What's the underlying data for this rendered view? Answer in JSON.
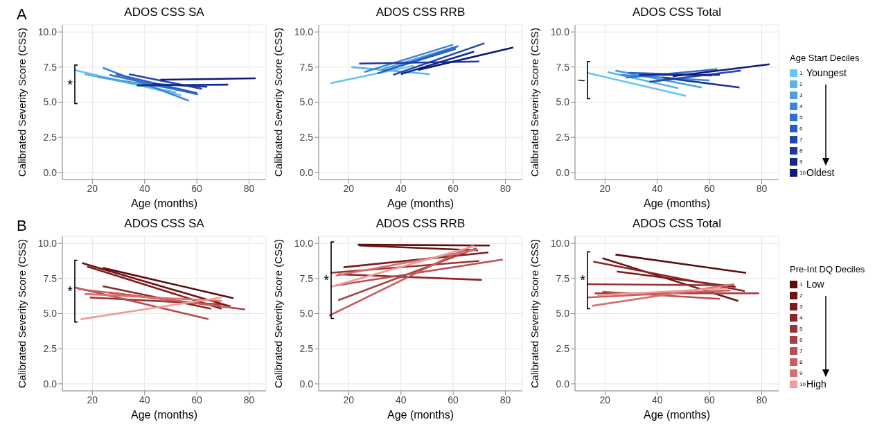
{
  "chart_data": [
    {
      "type": "line",
      "title": "ADOS CSS SA",
      "xlabel": "Age (months)",
      "ylabel": "Calibrated Severity Score (CSS)",
      "xlim": [
        8.5,
        86.5
      ],
      "xticks": [
        20,
        40,
        60,
        80
      ],
      "ylim": [
        -0.5,
        10.5
      ],
      "yticks": [
        {
          "value": 0,
          "label": "0.0"
        },
        {
          "value": 2.5,
          "label": "2.5"
        },
        {
          "value": 5,
          "label": "5.0"
        },
        {
          "value": 7.5,
          "label": "7.5"
        },
        {
          "value": 10,
          "label": "10.0"
        }
      ],
      "grid": true,
      "annotations": [
        "A",
        "*"
      ],
      "series": [
        {
          "color": "#6cc5f0",
          "x": [
            13,
            54
          ],
          "values": [
            7.3,
            5.5
          ]
        },
        {
          "color": "#5ab3ea",
          "x": [
            17,
            52
          ],
          "values": [
            7.0,
            5.7
          ]
        },
        {
          "color": "#4a9fe0",
          "x": [
            22,
            50
          ],
          "values": [
            6.8,
            6.0
          ]
        },
        {
          "color": "#3c86d6",
          "x": [
            24,
            57
          ],
          "values": [
            7.45,
            5.1
          ]
        },
        {
          "color": "#316fcc",
          "x": [
            26.5,
            60.5
          ],
          "values": [
            6.95,
            5.55
          ]
        },
        {
          "color": "#2a5cc0",
          "x": [
            29,
            60
          ],
          "values": [
            7.0,
            5.65
          ]
        },
        {
          "color": "#2248b0",
          "x": [
            34,
            62
          ],
          "values": [
            7.0,
            5.95
          ]
        },
        {
          "color": "#1a389e",
          "x": [
            43,
            64
          ],
          "values": [
            6.3,
            6.1
          ]
        },
        {
          "color": "#14298c",
          "x": [
            37,
            72
          ],
          "values": [
            6.2,
            6.25
          ]
        },
        {
          "color": "#0c1a78",
          "x": [
            46,
            82.5
          ],
          "values": [
            6.6,
            6.7
          ]
        }
      ]
    },
    {
      "type": "line",
      "title": "ADOS CSS RRB",
      "xlabel": "Age (months)",
      "ylabel": "Calibrated Severity Score (CSS)",
      "xlim": [
        8.5,
        86.5
      ],
      "xticks": [
        20,
        40,
        60,
        80
      ],
      "ylim": [
        -0.5,
        10.5
      ],
      "yticks": [
        {
          "value": 0,
          "label": "0.0"
        },
        {
          "value": 2.5,
          "label": "2.5"
        },
        {
          "value": 5,
          "label": "5.0"
        },
        {
          "value": 7.5,
          "label": "7.5"
        },
        {
          "value": 10,
          "label": "10.0"
        }
      ],
      "grid": true,
      "series": [
        {
          "color": "#6cc5f0",
          "x": [
            13,
            45
          ],
          "values": [
            6.35,
            7.6
          ]
        },
        {
          "color": "#5ab3ea",
          "x": [
            21,
            51
          ],
          "values": [
            7.5,
            7.0
          ]
        },
        {
          "color": "#4a9fe0",
          "x": [
            32,
            60
          ],
          "values": [
            7.3,
            8.9
          ]
        },
        {
          "color": "#3c86d6",
          "x": [
            26,
            60
          ],
          "values": [
            7.15,
            9.1
          ]
        },
        {
          "color": "#316fcc",
          "x": [
            31,
            62
          ],
          "values": [
            7.05,
            9.0
          ]
        },
        {
          "color": "#2a5cc0",
          "x": [
            33,
            61
          ],
          "values": [
            7.2,
            8.8
          ]
        },
        {
          "color": "#2248b0",
          "x": [
            37,
            72
          ],
          "values": [
            6.95,
            9.2
          ]
        },
        {
          "color": "#1a389e",
          "x": [
            24,
            70
          ],
          "values": [
            7.75,
            7.9
          ]
        },
        {
          "color": "#14298c",
          "x": [
            40,
            68
          ],
          "values": [
            7.0,
            8.6
          ]
        },
        {
          "color": "#0c1a78",
          "x": [
            46.5,
            83
          ],
          "values": [
            7.3,
            8.9
          ]
        }
      ]
    },
    {
      "type": "line",
      "title": "ADOS  CSS Total",
      "xlabel": "Age (months)",
      "ylabel": "Calibrated Severity Score (CSS)",
      "xlim": [
        8.5,
        86.5
      ],
      "xticks": [
        20,
        40,
        60,
        80
      ],
      "ylim": [
        -0.5,
        10.5
      ],
      "yticks": [
        {
          "value": 0,
          "label": "0.0"
        },
        {
          "value": 2.5,
          "label": "2.5"
        },
        {
          "value": 5,
          "label": "5.0"
        },
        {
          "value": 7.5,
          "label": "7.5"
        },
        {
          "value": 10,
          "label": "10.0"
        }
      ],
      "grid": true,
      "legend": "right",
      "legend_title": "Age Start Deciles",
      "annotations": [
        "Youngest",
        "Oldest",
        "~"
      ],
      "series": [
        {
          "name": "1",
          "color": "#6cc5f0",
          "x": [
            13,
            51
          ],
          "values": [
            7.1,
            5.45
          ]
        },
        {
          "name": "2",
          "color": "#5ab3ea",
          "x": [
            21,
            48
          ],
          "values": [
            7.15,
            6.0
          ]
        },
        {
          "name": "3",
          "color": "#4a9fe0",
          "x": [
            24,
            57
          ],
          "values": [
            7.25,
            6.05
          ]
        },
        {
          "name": "4",
          "color": "#3c86d6",
          "x": [
            26,
            60
          ],
          "values": [
            6.95,
            6.55
          ]
        },
        {
          "name": "5",
          "color": "#316fcc",
          "x": [
            28,
            63
          ],
          "values": [
            6.75,
            7.35
          ]
        },
        {
          "name": "6",
          "color": "#2a5cc0",
          "x": [
            29,
            61
          ],
          "values": [
            7.1,
            6.9
          ]
        },
        {
          "name": "7",
          "color": "#2248b0",
          "x": [
            37,
            72
          ],
          "values": [
            6.45,
            7.25
          ]
        },
        {
          "name": "8",
          "color": "#1a389e",
          "x": [
            42,
            71.5
          ],
          "values": [
            6.75,
            6.05
          ]
        },
        {
          "name": "9",
          "color": "#14298c",
          "x": [
            33,
            64
          ],
          "values": [
            6.95,
            6.95
          ]
        },
        {
          "name": "10",
          "color": "#0c1a78",
          "x": [
            46,
            83
          ],
          "values": [
            6.85,
            7.7
          ]
        }
      ]
    },
    {
      "type": "line",
      "title": "ADOS CSS SA",
      "xlabel": "Age (months)",
      "ylabel": "Calibrated Severity Score (CSS)",
      "xlim": [
        8.5,
        86.5
      ],
      "xticks": [
        20,
        40,
        60,
        80
      ],
      "ylim": [
        -0.5,
        10.5
      ],
      "yticks": [
        {
          "value": 0,
          "label": "0.0"
        },
        {
          "value": 2.5,
          "label": "2.5"
        },
        {
          "value": 5,
          "label": "5.0"
        },
        {
          "value": 7.5,
          "label": "7.5"
        },
        {
          "value": 10,
          "label": "10.0"
        }
      ],
      "grid": true,
      "annotations": [
        "B",
        "*"
      ],
      "series": [
        {
          "color": "#5c0a0a",
          "x": [
            24,
            74
          ],
          "values": [
            8.25,
            6.1
          ]
        },
        {
          "color": "#6e1212",
          "x": [
            16,
            73
          ],
          "values": [
            8.6,
            5.5
          ]
        },
        {
          "color": "#7e1a1a",
          "x": [
            18,
            69.5
          ],
          "values": [
            8.35,
            5.35
          ]
        },
        {
          "color": "#8c2525",
          "x": [
            24,
            65.5
          ],
          "values": [
            6.95,
            5.35
          ]
        },
        {
          "color": "#9a3232",
          "x": [
            19,
            69.5
          ],
          "values": [
            6.15,
            5.65
          ]
        },
        {
          "color": "#a84040",
          "x": [
            26.5,
            78.5
          ],
          "values": [
            6.5,
            5.3
          ]
        },
        {
          "color": "#b84e4e",
          "x": [
            13.5,
            64.5
          ],
          "values": [
            6.85,
            4.6
          ]
        },
        {
          "color": "#c85e5e",
          "x": [
            14.5,
            73
          ],
          "values": [
            6.75,
            5.45
          ]
        },
        {
          "color": "#d87070",
          "x": [
            17,
            69.5
          ],
          "values": [
            6.4,
            5.9
          ]
        },
        {
          "color": "#f09a9a",
          "x": [
            15.5,
            69.5
          ],
          "values": [
            4.6,
            6.15
          ]
        }
      ]
    },
    {
      "type": "line",
      "title": "ADOS CSS RRB",
      "xlabel": "Age (months)",
      "ylabel": "Calibrated Severity Score (CSS)",
      "xlim": [
        8.5,
        86.5
      ],
      "xticks": [
        20,
        40,
        60,
        80
      ],
      "ylim": [
        -0.5,
        10.5
      ],
      "yticks": [
        {
          "value": 0,
          "label": "0.0"
        },
        {
          "value": 2.5,
          "label": "2.5"
        },
        {
          "value": 5,
          "label": "5.0"
        },
        {
          "value": 7.5,
          "label": "7.5"
        },
        {
          "value": 10,
          "label": "10.0"
        }
      ],
      "grid": true,
      "annotations": [
        "*"
      ],
      "series": [
        {
          "color": "#5c0a0a",
          "x": [
            23.5,
            74
          ],
          "values": [
            9.9,
            9.85
          ]
        },
        {
          "color": "#6e1212",
          "x": [
            24,
            69.5
          ],
          "values": [
            9.85,
            9.5
          ]
        },
        {
          "color": "#7e1a1a",
          "x": [
            18,
            73.5
          ],
          "values": [
            8.3,
            9.35
          ]
        },
        {
          "color": "#8c2525",
          "x": [
            16,
            71
          ],
          "values": [
            7.8,
            7.4
          ]
        },
        {
          "color": "#9a3232",
          "x": [
            13,
            70
          ],
          "values": [
            7.9,
            8.75
          ]
        },
        {
          "color": "#a84040",
          "x": [
            16,
            69
          ],
          "values": [
            5.95,
            9.65
          ]
        },
        {
          "color": "#b84e4e",
          "x": [
            15,
            79
          ],
          "values": [
            7.0,
            8.85
          ]
        },
        {
          "color": "#c85e5e",
          "x": [
            12.5,
            67.5
          ],
          "values": [
            4.85,
            9.85
          ]
        },
        {
          "color": "#d87070",
          "x": [
            15,
            69
          ],
          "values": [
            7.7,
            9.55
          ]
        },
        {
          "color": "#f09a9a",
          "x": [
            13,
            68
          ],
          "values": [
            6.9,
            9.8
          ]
        }
      ]
    },
    {
      "type": "line",
      "title": "ADOS  CSS Total",
      "xlabel": "Age (months)",
      "ylabel": "Calibrated Severity Score (CSS)",
      "xlim": [
        8.5,
        86.5
      ],
      "xticks": [
        20,
        40,
        60,
        80
      ],
      "ylim": [
        -0.5,
        10.5
      ],
      "yticks": [
        {
          "value": 0,
          "label": "0.0"
        },
        {
          "value": 2.5,
          "label": "2.5"
        },
        {
          "value": 5,
          "label": "5.0"
        },
        {
          "value": 7.5,
          "label": "7.5"
        },
        {
          "value": 10,
          "label": "10.0"
        }
      ],
      "grid": true,
      "legend": "right",
      "legend_title": "Pre-Int DQ Deciles",
      "annotations": [
        "Low",
        "High",
        "*"
      ],
      "series": [
        {
          "name": "1",
          "color": "#5c0a0a",
          "x": [
            24,
            74
          ],
          "values": [
            9.2,
            7.9
          ]
        },
        {
          "name": "2",
          "color": "#6e1212",
          "x": [
            19,
            71
          ],
          "values": [
            8.95,
            5.9
          ]
        },
        {
          "name": "3",
          "color": "#7e1a1a",
          "x": [
            24.5,
            70
          ],
          "values": [
            8.0,
            6.9
          ]
        },
        {
          "name": "4",
          "color": "#8c2525",
          "x": [
            15.5,
            73.5
          ],
          "values": [
            8.7,
            6.6
          ]
        },
        {
          "name": "5",
          "color": "#9a3232",
          "x": [
            13,
            69.5
          ],
          "values": [
            7.1,
            7.0
          ]
        },
        {
          "name": "6",
          "color": "#a84040",
          "x": [
            16,
            79
          ],
          "values": [
            6.45,
            6.45
          ]
        },
        {
          "name": "7",
          "color": "#b84e4e",
          "x": [
            19,
            64
          ],
          "values": [
            6.55,
            6.05
          ]
        },
        {
          "name": "8",
          "color": "#c85e5e",
          "x": [
            13,
            68
          ],
          "values": [
            6.15,
            6.65
          ]
        },
        {
          "name": "9",
          "color": "#d87070",
          "x": [
            15,
            69.5
          ],
          "values": [
            5.55,
            7.1
          ]
        },
        {
          "name": "10",
          "color": "#f09a9a",
          "x": [
            17,
            67
          ],
          "values": [
            6.3,
            6.8
          ]
        }
      ]
    }
  ]
}
